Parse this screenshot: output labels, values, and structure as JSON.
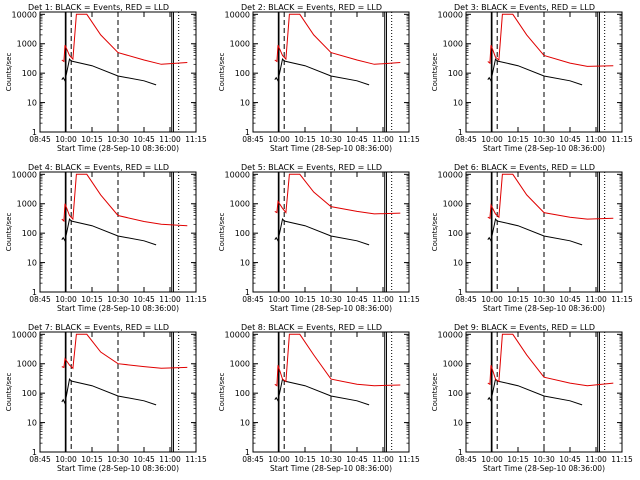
{
  "chart_data": [
    {
      "type": "line",
      "title": "Det 1: BLACK = Events, RED = LLD",
      "xlabel": "Start Time (28-Sep-10 08:36:00)",
      "ylabel": "Counts/sec",
      "x_ticks": [
        "08:45",
        "10:00",
        "10:15",
        "10:30",
        "10:45",
        "11:00",
        "11:15"
      ],
      "y_ticks": [
        "1",
        "10",
        "100",
        "1000",
        "10000"
      ],
      "ylim": [
        1,
        12000
      ],
      "y_scale": "log",
      "solid_markers": [
        "09:58",
        "10:00",
        "11:01",
        "11:02"
      ],
      "dashed_markers": [
        "10:03",
        "10:30"
      ],
      "dotted_markers": [
        "11:05"
      ],
      "series": [
        {
          "name": "Events",
          "color": "#000000",
          "x": [
            "09:48",
            "09:52",
            "09:57",
            "10:02",
            "10:03",
            "10:15",
            "10:30",
            "10:45",
            "10:52"
          ],
          "y": [
            60,
            70,
            55,
            300,
            260,
            180,
            80,
            55,
            40
          ]
        },
        {
          "name": "LLD",
          "color": "#e00000",
          "x": [
            "09:48",
            "09:54",
            "09:57",
            "10:02",
            "10:04",
            "10:06",
            "10:12",
            "10:20",
            "10:30",
            "10:45",
            "10:55",
            "11:10"
          ],
          "y": [
            280,
            250,
            900,
            400,
            300,
            10000,
            10000,
            2000,
            500,
            280,
            200,
            230
          ]
        }
      ]
    },
    {
      "type": "line",
      "title": "Det 2: BLACK = Events, RED = LLD",
      "xlabel": "Start Time (28-Sep-10 08:36:00)",
      "ylabel": "Counts/sec",
      "x_ticks": [
        "08:45",
        "10:00",
        "10:15",
        "10:30",
        "10:45",
        "11:00",
        "11:15"
      ],
      "y_ticks": [
        "1",
        "10",
        "100",
        "1000",
        "10000"
      ],
      "ylim": [
        1,
        12000
      ],
      "y_scale": "log",
      "solid_markers": [
        "09:58",
        "10:00",
        "11:01",
        "11:02"
      ],
      "dashed_markers": [
        "10:03",
        "10:30"
      ],
      "dotted_markers": [
        "11:05"
      ],
      "series": [
        {
          "name": "Events",
          "color": "#000000",
          "x": [
            "09:48",
            "09:52",
            "09:57",
            "10:02",
            "10:03",
            "10:15",
            "10:30",
            "10:45",
            "10:52"
          ],
          "y": [
            60,
            70,
            55,
            300,
            260,
            180,
            80,
            55,
            40
          ]
        },
        {
          "name": "LLD",
          "color": "#e00000",
          "x": [
            "09:48",
            "09:54",
            "09:57",
            "10:02",
            "10:04",
            "10:06",
            "10:12",
            "10:20",
            "10:30",
            "10:45",
            "10:55",
            "11:10"
          ],
          "y": [
            280,
            250,
            900,
            400,
            300,
            10000,
            10000,
            2000,
            500,
            280,
            200,
            230
          ]
        }
      ]
    },
    {
      "type": "line",
      "title": "Det 3: BLACK = Events, RED = LLD",
      "xlabel": "Start Time (28-Sep-10 08:36:00)",
      "ylabel": "Counts/sec",
      "x_ticks": [
        "08:45",
        "10:00",
        "10:15",
        "10:30",
        "10:45",
        "11:00",
        "11:15"
      ],
      "y_ticks": [
        "1",
        "10",
        "100",
        "1000",
        "10000"
      ],
      "ylim": [
        1,
        12000
      ],
      "y_scale": "log",
      "solid_markers": [
        "09:58",
        "10:00",
        "11:01",
        "11:02"
      ],
      "dashed_markers": [
        "10:03",
        "10:30"
      ],
      "dotted_markers": [
        "11:05"
      ],
      "series": [
        {
          "name": "Events",
          "color": "#000000",
          "x": [
            "09:48",
            "09:52",
            "09:57",
            "10:02",
            "10:03",
            "10:15",
            "10:30",
            "10:45",
            "10:52"
          ],
          "y": [
            60,
            70,
            55,
            300,
            260,
            180,
            80,
            55,
            40
          ]
        },
        {
          "name": "LLD",
          "color": "#e00000",
          "x": [
            "09:48",
            "09:54",
            "09:57",
            "10:02",
            "10:04",
            "10:06",
            "10:12",
            "10:20",
            "10:30",
            "10:45",
            "10:55",
            "11:10"
          ],
          "y": [
            250,
            220,
            900,
            350,
            280,
            10000,
            10000,
            2000,
            400,
            220,
            170,
            180
          ]
        }
      ]
    },
    {
      "type": "line",
      "title": "Det 4: BLACK = Events, RED = LLD",
      "xlabel": "Start Time (28-Sep-10 08:36:00)",
      "ylabel": "Counts/sec",
      "x_ticks": [
        "08:45",
        "10:00",
        "10:15",
        "10:30",
        "10:45",
        "11:00",
        "11:15"
      ],
      "y_ticks": [
        "1",
        "10",
        "100",
        "1000",
        "10000"
      ],
      "ylim": [
        1,
        12000
      ],
      "y_scale": "log",
      "solid_markers": [
        "09:58",
        "10:00",
        "11:01",
        "11:02"
      ],
      "dashed_markers": [
        "10:03",
        "10:30"
      ],
      "dotted_markers": [
        "11:05"
      ],
      "series": [
        {
          "name": "Events",
          "color": "#000000",
          "x": [
            "09:48",
            "09:52",
            "09:57",
            "10:02",
            "10:03",
            "10:15",
            "10:30",
            "10:45",
            "10:52"
          ],
          "y": [
            60,
            70,
            55,
            300,
            260,
            180,
            80,
            55,
            40
          ]
        },
        {
          "name": "LLD",
          "color": "#e00000",
          "x": [
            "09:48",
            "09:54",
            "09:57",
            "10:02",
            "10:04",
            "10:06",
            "10:12",
            "10:20",
            "10:30",
            "10:45",
            "10:55",
            "11:10"
          ],
          "y": [
            300,
            260,
            1000,
            400,
            300,
            10000,
            10000,
            2000,
            400,
            250,
            200,
            180
          ]
        }
      ]
    },
    {
      "type": "line",
      "title": "Det 5: BLACK = Events, RED = LLD",
      "xlabel": "Start Time (28-Sep-10 08:36:00)",
      "ylabel": "Counts/sec",
      "x_ticks": [
        "08:45",
        "10:00",
        "10:15",
        "10:30",
        "10:45",
        "11:00",
        "11:15"
      ],
      "y_ticks": [
        "1",
        "10",
        "100",
        "1000",
        "10000"
      ],
      "ylim": [
        1,
        12000
      ],
      "y_scale": "log",
      "solid_markers": [
        "09:58",
        "10:00",
        "11:01",
        "11:02"
      ],
      "dashed_markers": [
        "10:03",
        "10:30"
      ],
      "dotted_markers": [
        "11:05"
      ],
      "series": [
        {
          "name": "Events",
          "color": "#000000",
          "x": [
            "09:48",
            "09:52",
            "09:57",
            "10:02",
            "10:03",
            "10:15",
            "10:30",
            "10:45",
            "10:52"
          ],
          "y": [
            60,
            70,
            55,
            300,
            260,
            180,
            80,
            55,
            40
          ]
        },
        {
          "name": "LLD",
          "color": "#e00000",
          "x": [
            "09:48",
            "09:54",
            "09:57",
            "10:02",
            "10:04",
            "10:06",
            "10:12",
            "10:20",
            "10:30",
            "10:45",
            "10:55",
            "11:10"
          ],
          "y": [
            550,
            500,
            1200,
            700,
            500,
            10000,
            10000,
            2500,
            800,
            550,
            450,
            480
          ]
        }
      ]
    },
    {
      "type": "line",
      "title": "Det 6: BLACK = Events, RED = LLD",
      "xlabel": "Start Time (28-Sep-10 08:36:00)",
      "ylabel": "Counts/sec",
      "x_ticks": [
        "08:45",
        "10:00",
        "10:15",
        "10:30",
        "10:45",
        "11:00",
        "11:15"
      ],
      "y_ticks": [
        "1",
        "10",
        "100",
        "1000",
        "10000"
      ],
      "ylim": [
        1,
        12000
      ],
      "y_scale": "log",
      "solid_markers": [
        "09:58",
        "10:00",
        "11:01",
        "11:02"
      ],
      "dashed_markers": [
        "10:03",
        "10:30"
      ],
      "dotted_markers": [
        "11:05"
      ],
      "series": [
        {
          "name": "Events",
          "color": "#000000",
          "x": [
            "09:48",
            "09:52",
            "09:57",
            "10:02",
            "10:03",
            "10:15",
            "10:30",
            "10:45",
            "10:52"
          ],
          "y": [
            60,
            70,
            55,
            300,
            260,
            180,
            80,
            55,
            40
          ]
        },
        {
          "name": "LLD",
          "color": "#e00000",
          "x": [
            "09:48",
            "09:54",
            "09:57",
            "10:02",
            "10:04",
            "10:06",
            "10:12",
            "10:20",
            "10:30",
            "10:45",
            "10:55",
            "11:10"
          ],
          "y": [
            350,
            320,
            900,
            450,
            350,
            10000,
            10000,
            2000,
            500,
            350,
            300,
            320
          ]
        }
      ]
    },
    {
      "type": "line",
      "title": "Det 7: BLACK = Events, RED = LLD",
      "xlabel": "Start Time (28-Sep-10 08:36:00)",
      "ylabel": "Counts/sec",
      "x_ticks": [
        "08:45",
        "10:00",
        "10:15",
        "10:30",
        "10:45",
        "11:00",
        "11:15"
      ],
      "y_ticks": [
        "1",
        "10",
        "100",
        "1000",
        "10000"
      ],
      "ylim": [
        1,
        12000
      ],
      "y_scale": "log",
      "solid_markers": [
        "09:58",
        "10:00",
        "11:01",
        "11:02"
      ],
      "dashed_markers": [
        "10:03",
        "10:30"
      ],
      "dotted_markers": [
        "11:05"
      ],
      "series": [
        {
          "name": "Events",
          "color": "#000000",
          "x": [
            "09:48",
            "09:52",
            "09:57",
            "10:02",
            "10:03",
            "10:15",
            "10:30",
            "10:45",
            "10:52"
          ],
          "y": [
            50,
            60,
            45,
            300,
            260,
            180,
            80,
            55,
            40
          ]
        },
        {
          "name": "LLD",
          "color": "#e00000",
          "x": [
            "09:48",
            "09:54",
            "09:57",
            "10:02",
            "10:04",
            "10:06",
            "10:12",
            "10:20",
            "10:30",
            "10:45",
            "10:55",
            "11:10"
          ],
          "y": [
            800,
            750,
            1500,
            900,
            700,
            10000,
            10000,
            2500,
            1000,
            800,
            700,
            750
          ]
        }
      ]
    },
    {
      "type": "line",
      "title": "Det 8: BLACK = Events, RED = LLD",
      "xlabel": "Start Time (28-Sep-10 08:36:00)",
      "ylabel": "Counts/sec",
      "x_ticks": [
        "08:45",
        "10:00",
        "10:15",
        "10:30",
        "10:45",
        "11:00",
        "11:15"
      ],
      "y_ticks": [
        "1",
        "10",
        "100",
        "1000",
        "10000"
      ],
      "ylim": [
        1,
        12000
      ],
      "y_scale": "log",
      "solid_markers": [
        "09:58",
        "10:00",
        "11:01",
        "11:02"
      ],
      "dashed_markers": [
        "10:03",
        "10:30"
      ],
      "dotted_markers": [
        "11:05"
      ],
      "series": [
        {
          "name": "Events",
          "color": "#000000",
          "x": [
            "09:48",
            "09:52",
            "09:57",
            "10:02",
            "10:03",
            "10:15",
            "10:30",
            "10:45",
            "10:52"
          ],
          "y": [
            60,
            70,
            55,
            300,
            260,
            180,
            80,
            55,
            40
          ]
        },
        {
          "name": "LLD",
          "color": "#e00000",
          "x": [
            "09:48",
            "09:54",
            "09:57",
            "10:02",
            "10:04",
            "10:06",
            "10:12",
            "10:20",
            "10:30",
            "10:45",
            "10:55",
            "11:10"
          ],
          "y": [
            200,
            180,
            900,
            300,
            250,
            10000,
            10000,
            2000,
            300,
            200,
            180,
            190
          ]
        }
      ]
    },
    {
      "type": "line",
      "title": "Det 9: BLACK = Events, RED = LLD",
      "xlabel": "Start Time (28-Sep-10 08:36:00)",
      "ylabel": "Counts/sec",
      "x_ticks": [
        "08:45",
        "10:00",
        "10:15",
        "10:30",
        "10:45",
        "11:00",
        "11:15"
      ],
      "y_ticks": [
        "1",
        "10",
        "100",
        "1000",
        "10000"
      ],
      "ylim": [
        1,
        12000
      ],
      "y_scale": "log",
      "solid_markers": [
        "09:58",
        "10:00",
        "11:01",
        "11:02"
      ],
      "dashed_markers": [
        "10:03",
        "10:30"
      ],
      "dotted_markers": [
        "11:05"
      ],
      "series": [
        {
          "name": "Events",
          "color": "#000000",
          "x": [
            "09:48",
            "09:52",
            "09:57",
            "10:02",
            "10:03",
            "10:15",
            "10:30",
            "10:45",
            "10:52"
          ],
          "y": [
            60,
            70,
            55,
            300,
            260,
            180,
            80,
            55,
            40
          ]
        },
        {
          "name": "LLD",
          "color": "#e00000",
          "x": [
            "09:48",
            "09:54",
            "09:57",
            "10:02",
            "10:04",
            "10:06",
            "10:12",
            "10:20",
            "10:30",
            "10:45",
            "10:55",
            "11:10"
          ],
          "y": [
            220,
            200,
            900,
            300,
            250,
            10000,
            10000,
            2000,
            350,
            220,
            180,
            220
          ]
        }
      ]
    }
  ]
}
